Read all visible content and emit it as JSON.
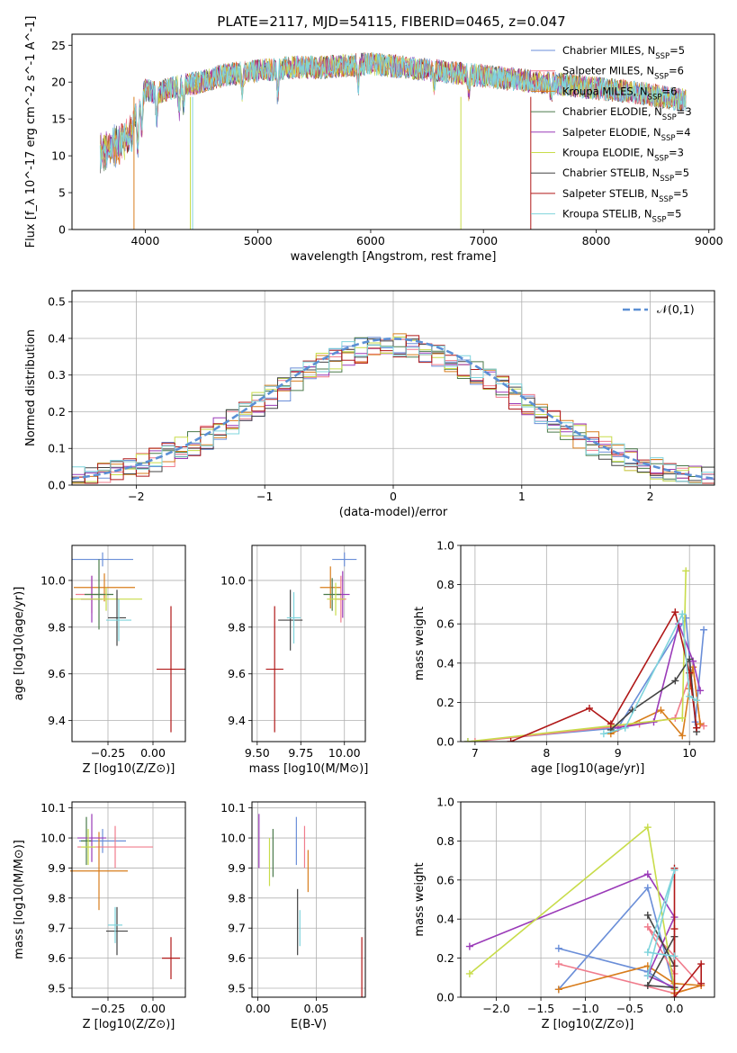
{
  "figure_title": "PLATE=2117, MJD=54115, FIBERID=0465, z=0.047",
  "legend": [
    {
      "label": "Chabrier MILES, N_SSP=5",
      "color": "#6a8ed8"
    },
    {
      "label": "Salpeter MILES, N_SSP=6",
      "color": "#f07c8c"
    },
    {
      "label": "Kroupa MILES, N_SSP=6",
      "color": "#d87d1c"
    },
    {
      "label": "Chabrier ELODIE, N_SSP=3",
      "color": "#4a7a4a"
    },
    {
      "label": "Salpeter ELODIE, N_SSP=4",
      "color": "#9a3ab8"
    },
    {
      "label": "Kroupa ELODIE, N_SSP=3",
      "color": "#c8dc4a"
    },
    {
      "label": "Chabrier STELIB, N_SSP=5",
      "color": "#444444"
    },
    {
      "label": "Salpeter STELIB, N_SSP=5",
      "color": "#b01818"
    },
    {
      "label": "Kroupa STELIB, N_SSP=5",
      "color": "#7fd4dc"
    }
  ],
  "chart_data": [
    {
      "id": "spectrum",
      "type": "line",
      "xlabel": "wavelength [Angstrom, rest frame]",
      "ylabel": "Flux [f_λ 10^-17 erg cm^-2 s^-1 A^-1]",
      "xlim": [
        3350,
        9050
      ],
      "ylim": [
        0,
        26.5
      ],
      "xticks": [
        4000,
        5000,
        6000,
        7000,
        8000,
        9000
      ],
      "yticks": [
        0,
        5,
        10,
        15,
        20,
        25
      ],
      "x_range_data": [
        3600,
        8800
      ],
      "continuum": {
        "x": [
          3600,
          3700,
          3800,
          3900,
          4000,
          4100,
          4300,
          4500,
          4700,
          5000,
          5300,
          5600,
          6000,
          6300,
          6600,
          6900,
          7200,
          7500,
          7800,
          8100,
          8400,
          8800
        ],
        "y": [
          12,
          12.5,
          13.5,
          15,
          19,
          18.5,
          19.5,
          20,
          21,
          21.5,
          22,
          22,
          22.5,
          22,
          21.5,
          21,
          20.5,
          20,
          19.5,
          19,
          18.5,
          17.5
        ]
      },
      "grid": false,
      "legend_position": "upper right"
    },
    {
      "id": "residuals",
      "type": "step",
      "xlabel": "(data-model)/error",
      "ylabel": "Normed distribution",
      "xlim": [
        -2.5,
        2.5
      ],
      "ylim": [
        0,
        0.53
      ],
      "xticks": [
        -2,
        -1,
        0,
        1,
        2
      ],
      "yticks": [
        0.0,
        0.1,
        0.2,
        0.3,
        0.4,
        0.5
      ],
      "bin_width": 0.1,
      "reference_curve": {
        "label": "𝒩(0,1)",
        "style": "dashed",
        "color": "#5b8fd4"
      },
      "grid": true,
      "legend_position": "upper right"
    },
    {
      "id": "age_vs_Z",
      "type": "errorbar",
      "xlabel": "Z [log10(Z/Z⊙)]",
      "ylabel": "age [log10(age/yr)]",
      "xlim": [
        -0.45,
        0.18
      ],
      "ylim": [
        9.31,
        10.15
      ],
      "xticks": [
        -0.25,
        0.0
      ],
      "yticks": [
        9.4,
        9.6,
        9.8,
        10.0
      ],
      "points": [
        {
          "x": -0.28,
          "y": 10.09,
          "xerr": 0.17,
          "yerr": 0.03,
          "series": 0
        },
        {
          "x": -0.27,
          "y": 9.97,
          "xerr": 0.17,
          "yerr": 0.06,
          "series": 2
        },
        {
          "x": -0.34,
          "y": 9.94,
          "xerr": 0.09,
          "yerr": 0.08,
          "series": 1
        },
        {
          "x": -0.34,
          "y": 9.92,
          "xerr": 0.06,
          "yerr": 0.1,
          "series": 4
        },
        {
          "x": -0.3,
          "y": 9.94,
          "xerr": 0.08,
          "yerr": 0.15,
          "series": 3
        },
        {
          "x": -0.26,
          "y": 9.92,
          "xerr": 0.2,
          "yerr": 0.05,
          "series": 5
        },
        {
          "x": -0.2,
          "y": 9.84,
          "xerr": 0.05,
          "yerr": 0.12,
          "series": 6
        },
        {
          "x": -0.19,
          "y": 9.83,
          "xerr": 0.07,
          "yerr": 0.09,
          "series": 8
        },
        {
          "x": 0.1,
          "y": 9.62,
          "xerr": 0.08,
          "yerr": 0.27,
          "series": 7
        }
      ],
      "grid": true
    },
    {
      "id": "age_vs_mass",
      "type": "errorbar",
      "xlabel": "mass [log10(M/M⊙)]",
      "ylabel": "",
      "xlim": [
        9.47,
        10.12
      ],
      "ylim": [
        9.31,
        10.15
      ],
      "xticks": [
        9.5,
        9.75,
        10.0
      ],
      "yticks": [
        9.4,
        9.6,
        9.8,
        10.0
      ],
      "points": [
        {
          "x": 10.0,
          "y": 10.09,
          "xerr": 0.07,
          "yerr": 0.03,
          "series": 0
        },
        {
          "x": 9.92,
          "y": 9.97,
          "xerr": 0.06,
          "yerr": 0.09,
          "series": 2
        },
        {
          "x": 9.98,
          "y": 9.92,
          "xerr": 0.03,
          "yerr": 0.1,
          "series": 1
        },
        {
          "x": 9.99,
          "y": 9.94,
          "xerr": 0.04,
          "yerr": 0.1,
          "series": 4
        },
        {
          "x": 9.93,
          "y": 9.94,
          "xerr": 0.05,
          "yerr": 0.07,
          "series": 3
        },
        {
          "x": 9.95,
          "y": 9.92,
          "xerr": 0.05,
          "yerr": 0.07,
          "series": 5
        },
        {
          "x": 9.69,
          "y": 9.83,
          "xerr": 0.07,
          "yerr": 0.13,
          "series": 6
        },
        {
          "x": 9.71,
          "y": 9.84,
          "xerr": 0.04,
          "yerr": 0.11,
          "series": 8
        },
        {
          "x": 9.6,
          "y": 9.62,
          "xerr": 0.05,
          "yerr": 0.27,
          "series": 7
        }
      ],
      "grid": true
    },
    {
      "id": "massweight_vs_age",
      "type": "line",
      "xlabel": "age [log10(age/yr)]",
      "ylabel": "mass weight",
      "xlim": [
        6.8,
        10.35
      ],
      "ylim": [
        0.0,
        1.0
      ],
      "xticks": [
        7,
        8,
        9,
        10
      ],
      "yticks": [
        0.0,
        0.2,
        0.4,
        0.6,
        0.8,
        1.0
      ],
      "series": [
        {
          "series": 0,
          "x": [
            6.9,
            9.0,
            9.95,
            10.08,
            10.2
          ],
          "y": [
            0.0,
            0.07,
            0.63,
            0.1,
            0.57
          ]
        },
        {
          "series": 1,
          "x": [
            7.0,
            9.3,
            9.8,
            10.05,
            10.15,
            10.2
          ],
          "y": [
            0.0,
            0.09,
            0.12,
            0.38,
            0.09,
            0.08
          ]
        },
        {
          "series": 2,
          "x": [
            8.9,
            9.6,
            9.9,
            10.0,
            10.05,
            10.15
          ],
          "y": [
            0.04,
            0.16,
            0.03,
            0.27,
            0.38,
            0.09
          ]
        },
        {
          "series": 4,
          "x": [
            9.0,
            9.5,
            9.85,
            10.05,
            10.15
          ],
          "y": [
            0.07,
            0.1,
            0.6,
            0.41,
            0.26
          ]
        },
        {
          "series": 5,
          "x": [
            6.9,
            9.9,
            9.95
          ],
          "y": [
            0.0,
            0.12,
            0.87
          ]
        },
        {
          "series": 6,
          "x": [
            8.9,
            9.2,
            9.8,
            10.0,
            10.1
          ],
          "y": [
            0.06,
            0.16,
            0.31,
            0.42,
            0.05
          ]
        },
        {
          "series": 7,
          "x": [
            7.5,
            8.6,
            8.9,
            9.8,
            10.0,
            10.1
          ],
          "y": [
            0.0,
            0.17,
            0.09,
            0.66,
            0.35,
            0.07
          ]
        },
        {
          "series": 8,
          "x": [
            8.8,
            9.1,
            9.9,
            10.0,
            10.1
          ],
          "y": [
            0.04,
            0.07,
            0.65,
            0.23,
            0.21
          ]
        }
      ],
      "grid": true
    },
    {
      "id": "mass_vs_Z",
      "type": "errorbar",
      "xlabel": "Z [log10(Z/Z⊙)]",
      "ylabel": "mass [log10(M/M⊙)]",
      "xlim": [
        -0.45,
        0.18
      ],
      "ylim": [
        9.47,
        10.12
      ],
      "xticks": [
        -0.25,
        0.0
      ],
      "yticks": [
        9.5,
        9.6,
        9.7,
        9.8,
        9.9,
        10.0,
        10.1
      ],
      "points": [
        {
          "x": -0.28,
          "y": 9.99,
          "xerr": 0.13,
          "yerr": 0.04,
          "series": 0
        },
        {
          "x": -0.21,
          "y": 9.97,
          "xerr": 0.21,
          "yerr": 0.07,
          "series": 1
        },
        {
          "x": -0.3,
          "y": 9.89,
          "xerr": 0.16,
          "yerr": 0.13,
          "series": 2
        },
        {
          "x": -0.37,
          "y": 9.99,
          "xerr": 0.03,
          "yerr": 0.08,
          "series": 3
        },
        {
          "x": -0.34,
          "y": 10.0,
          "xerr": 0.08,
          "yerr": 0.08,
          "series": 4
        },
        {
          "x": -0.36,
          "y": 9.97,
          "xerr": 0.04,
          "yerr": 0.06,
          "series": 5
        },
        {
          "x": -0.2,
          "y": 9.69,
          "xerr": 0.06,
          "yerr": 0.08,
          "series": 6
        },
        {
          "x": -0.21,
          "y": 9.71,
          "xerr": 0.04,
          "yerr": 0.06,
          "series": 8
        },
        {
          "x": 0.1,
          "y": 9.6,
          "xerr": 0.05,
          "yerr": 0.07,
          "series": 7
        }
      ],
      "grid": true
    },
    {
      "id": "mass_vs_ebv",
      "type": "errorbar",
      "xlabel": "E(B-V)",
      "ylabel": "",
      "xlim": [
        -0.005,
        0.092
      ],
      "ylim": [
        9.47,
        10.12
      ],
      "xticks": [
        0.0,
        0.05
      ],
      "yticks": [
        9.5,
        9.6,
        9.7,
        9.8,
        9.9,
        10.0,
        10.1
      ],
      "points": [
        {
          "x": 0.001,
          "y": 9.99,
          "yerr": 0.09,
          "series": 4
        },
        {
          "x": 0.01,
          "y": 9.92,
          "yerr": 0.08,
          "series": 5
        },
        {
          "x": 0.013,
          "y": 9.95,
          "yerr": 0.08,
          "series": 3
        },
        {
          "x": 0.033,
          "y": 9.99,
          "yerr": 0.08,
          "series": 0
        },
        {
          "x": 0.04,
          "y": 9.97,
          "yerr": 0.07,
          "series": 1
        },
        {
          "x": 0.043,
          "y": 9.89,
          "yerr": 0.07,
          "series": 2
        },
        {
          "x": 0.034,
          "y": 9.72,
          "yerr": 0.11,
          "series": 6
        },
        {
          "x": 0.036,
          "y": 9.7,
          "yerr": 0.06,
          "series": 8
        },
        {
          "x": 0.089,
          "y": 9.57,
          "yerr": 0.1,
          "series": 7
        }
      ],
      "grid": true
    },
    {
      "id": "massweight_vs_Z",
      "type": "line",
      "xlabel": "Z [log10(Z/Z⊙)]",
      "ylabel": "mass weight",
      "xlim": [
        -2.4,
        0.45
      ],
      "ylim": [
        0.0,
        1.0
      ],
      "xticks": [
        -2.0,
        -1.5,
        -1.0,
        -0.5,
        0.0
      ],
      "yticks": [
        0.0,
        0.2,
        0.4,
        0.6,
        0.8,
        1.0
      ],
      "series": [
        {
          "series": 0,
          "x": [
            -1.3,
            -0.3,
            0.0,
            -0.3,
            -1.3
          ],
          "y": [
            0.04,
            0.56,
            0.04,
            0.13,
            0.25
          ]
        },
        {
          "series": 1,
          "x": [
            -1.3,
            0.0,
            0.3,
            -0.3,
            0.0
          ],
          "y": [
            0.17,
            0.02,
            0.06,
            0.36,
            0.12
          ]
        },
        {
          "series": 2,
          "x": [
            -1.3,
            -0.3,
            0.0,
            0.3,
            0.0
          ],
          "y": [
            0.04,
            0.16,
            0.07,
            0.06,
            0.02
          ]
        },
        {
          "series": 4,
          "x": [
            -2.3,
            -0.3,
            0.0,
            -0.3,
            0.0
          ],
          "y": [
            0.26,
            0.63,
            0.41,
            0.11,
            0.05
          ]
        },
        {
          "series": 5,
          "x": [
            -2.3,
            -0.3,
            0.0
          ],
          "y": [
            0.12,
            0.87,
            0.04
          ]
        },
        {
          "series": 6,
          "x": [
            -0.3,
            0.0,
            0.0,
            -0.3,
            0.0
          ],
          "y": [
            0.42,
            0.16,
            0.31,
            0.06,
            0.05
          ]
        },
        {
          "series": 7,
          "x": [
            0.0,
            0.0,
            0.0,
            0.3,
            0.3
          ],
          "y": [
            0.66,
            0.35,
            0.0,
            0.17,
            0.07
          ]
        },
        {
          "series": 8,
          "x": [
            -0.3,
            0.0,
            -0.3,
            0.0
          ],
          "y": [
            0.11,
            0.65,
            0.23,
            0.21
          ]
        }
      ],
      "grid": true
    }
  ]
}
